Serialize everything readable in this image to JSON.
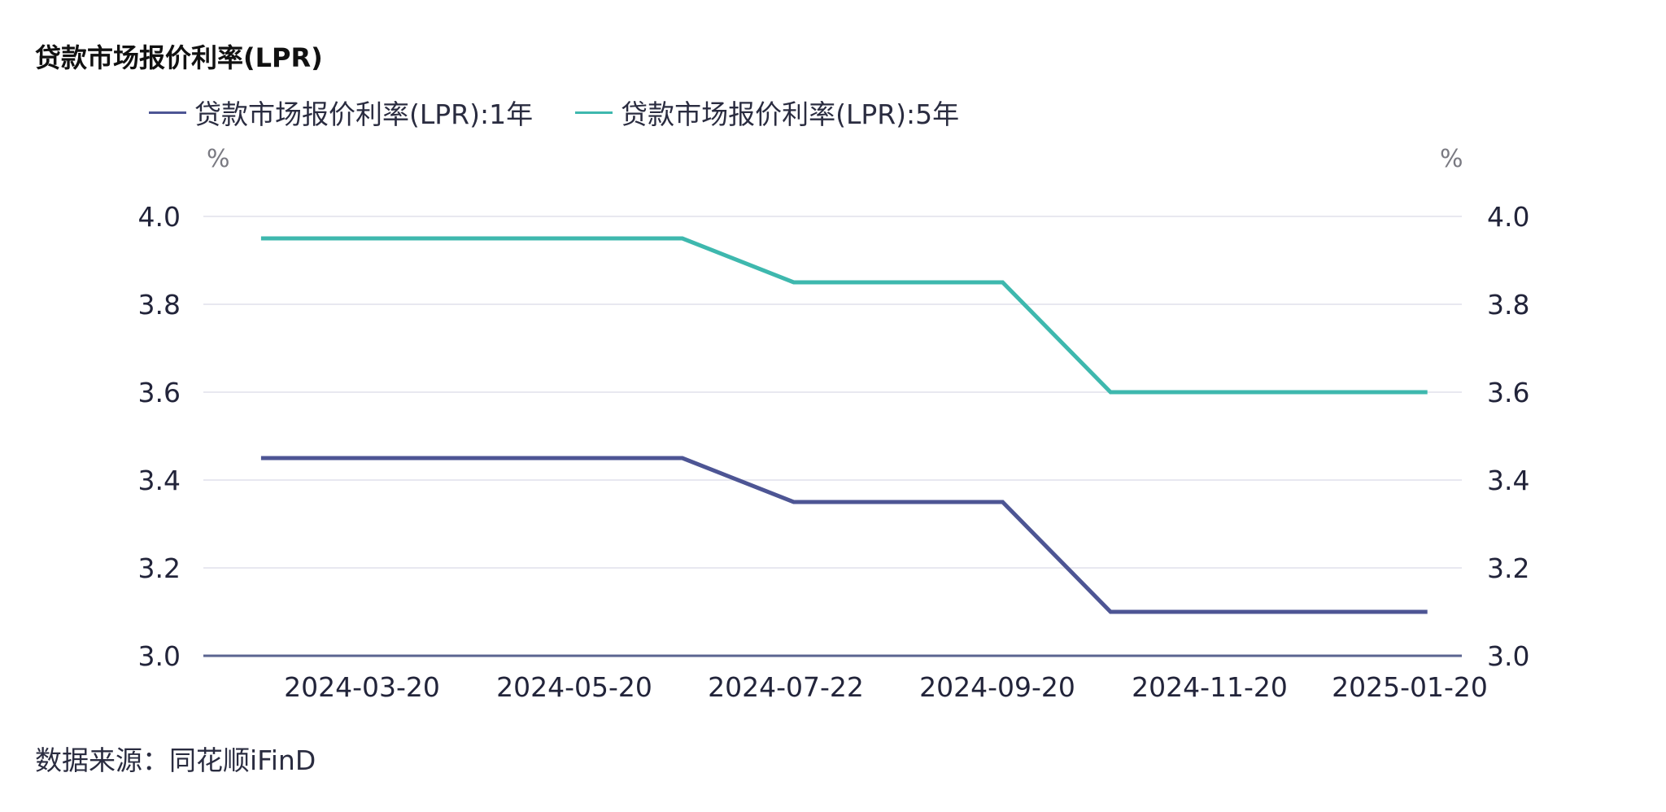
{
  "title": "贷款市场报价利率(LPR)",
  "legend": [
    {
      "label": "贷款市场报价利率(LPR):1年",
      "color": "#4d5594"
    },
    {
      "label": "贷款市场报价利率(LPR):5年",
      "color": "#3eb8ae"
    }
  ],
  "axis": {
    "left_unit": "%",
    "right_unit": "%",
    "gridline_color": "#e8e8f0",
    "baseline_color": "#5b6490"
  },
  "source": "数据来源：同花顺iFinD",
  "chart_data": {
    "type": "line",
    "title": "贷款市场报价利率(LPR)",
    "xlabel": "",
    "ylabel": "%",
    "y2label": "%",
    "ylim": [
      3.0,
      4.0
    ],
    "yticks": [
      3.0,
      3.2,
      3.4,
      3.6,
      3.8,
      4.0
    ],
    "ytick_labels": [
      "3.0",
      "3.2",
      "3.4",
      "3.6",
      "3.8",
      "4.0"
    ],
    "xtick_labels": [
      "2024-03-20",
      "2024-05-20",
      "2024-07-22",
      "2024-09-20",
      "2024-11-20",
      "2025-01-20"
    ],
    "grid": true,
    "legend_position": "top",
    "x": [
      "2024-02-20",
      "2024-03-20",
      "2024-04-22",
      "2024-05-20",
      "2024-06-20",
      "2024-07-22",
      "2024-08-20",
      "2024-09-20",
      "2024-10-21",
      "2024-11-20",
      "2024-12-20",
      "2025-01-20"
    ],
    "series": [
      {
        "name": "贷款市场报价利率(LPR):1年",
        "color": "#4d5594",
        "values": [
          3.45,
          3.45,
          3.45,
          3.45,
          3.45,
          3.35,
          3.35,
          3.35,
          3.1,
          3.1,
          3.1,
          3.1
        ]
      },
      {
        "name": "贷款市场报价利率(LPR):5年",
        "color": "#3eb8ae",
        "values": [
          3.95,
          3.95,
          3.95,
          3.95,
          3.95,
          3.85,
          3.85,
          3.85,
          3.6,
          3.6,
          3.6,
          3.6
        ]
      }
    ]
  }
}
